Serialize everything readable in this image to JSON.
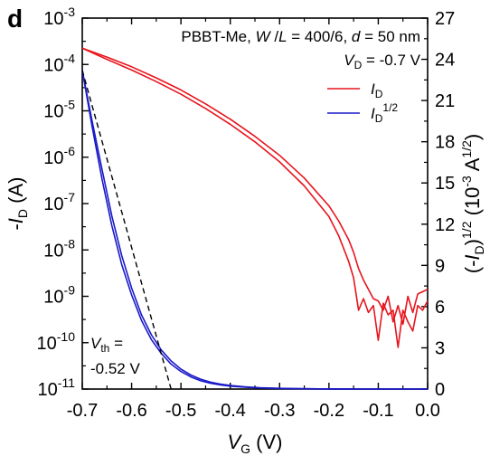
{
  "chart_data": {
    "type": "line",
    "panel_label": "d",
    "device_label": {
      "prefix": "PBBT-Me, ",
      "w": "W",
      "slash": " /",
      "l": "L",
      "eq": " = 400/6, ",
      "d": "d",
      "deq": " = 50 nm"
    },
    "vd_label": {
      "v": "V",
      "sub": "D",
      "rest": " = -0.7 V"
    },
    "xlabel": {
      "v": "V",
      "sub": "G",
      "rest": " (V)"
    },
    "ylabel_left": {
      "pre": "-",
      "i": "I",
      "sub": "D",
      "rest": " (A)"
    },
    "ylabel_right": {
      "pre": "(-",
      "i": "I",
      "sub": "D",
      "mid": ")",
      "sup": "1/2",
      "rest": " (10",
      "sup2": "-3",
      "rest2": " A",
      "sup3": "1/2",
      "end": ")"
    },
    "legend": [
      {
        "i": "I",
        "sub": "D",
        "sup": "",
        "color": "#e8141c"
      },
      {
        "i": "I",
        "sub": "D",
        "sup": "1/2",
        "color": "#1a1ac8"
      }
    ],
    "vth_label": {
      "v": "V",
      "sub": "th",
      "eq": " =",
      "value": "-0.52 V"
    },
    "xlim": [
      -0.7,
      0.0
    ],
    "x_ticks": [
      -0.7,
      -0.6,
      -0.5,
      -0.4,
      -0.3,
      -0.2,
      -0.1,
      0.0
    ],
    "x_tick_labels": [
      "-0.7",
      "-0.6",
      "-0.5",
      "-0.4",
      "-0.3",
      "-0.2",
      "-0.1",
      "0.0"
    ],
    "ylim_left_log10": [
      -11,
      -3
    ],
    "y_left_ticks": [
      {
        "exp": -3,
        "mant": "10",
        "sup": "-3"
      },
      {
        "exp": -4,
        "mant": "10",
        "sup": "-4"
      },
      {
        "exp": -5,
        "mant": "10",
        "sup": "-5"
      },
      {
        "exp": -6,
        "mant": "10",
        "sup": "-6"
      },
      {
        "exp": -7,
        "mant": "10",
        "sup": "-7"
      },
      {
        "exp": -8,
        "mant": "10",
        "sup": "-8"
      },
      {
        "exp": -9,
        "mant": "10",
        "sup": "-9"
      },
      {
        "exp": -10,
        "mant": "10",
        "sup": "-10"
      },
      {
        "exp": -11,
        "mant": "10",
        "sup": "-11"
      }
    ],
    "ylim_right": [
      0,
      27
    ],
    "y_right_ticks": [
      0,
      3,
      6,
      9,
      12,
      15,
      18,
      21,
      24,
      27
    ],
    "series": [
      {
        "name": "ID",
        "axis": "left",
        "color": "#e8141c",
        "x": [
          -0.7,
          -0.65,
          -0.6,
          -0.55,
          -0.5,
          -0.45,
          -0.4,
          -0.35,
          -0.3,
          -0.25,
          -0.2,
          -0.18,
          -0.16,
          -0.15,
          -0.14,
          -0.13,
          -0.12,
          -0.11,
          -0.1,
          -0.09,
          -0.08,
          -0.07,
          -0.06,
          -0.05,
          -0.04,
          -0.03,
          -0.02,
          -0.01,
          0.0
        ],
        "y_log10": [
          -3.65,
          -3.84,
          -4.05,
          -4.29,
          -4.55,
          -4.85,
          -5.18,
          -5.55,
          -5.96,
          -6.45,
          -7.05,
          -7.38,
          -7.78,
          -8.05,
          -8.4,
          -8.65,
          -8.85,
          -9.05,
          -9.1,
          -9.3,
          -9.0,
          -9.55,
          -9.2,
          -9.6,
          -9.0,
          -9.35,
          -8.95,
          -8.9,
          -8.85
        ]
      },
      {
        "name": "ID",
        "axis": "left",
        "color": "#e8141c",
        "x": [
          -0.7,
          -0.65,
          -0.6,
          -0.55,
          -0.5,
          -0.45,
          -0.4,
          -0.35,
          -0.3,
          -0.25,
          -0.2,
          -0.18,
          -0.16,
          -0.15,
          -0.14,
          -0.13,
          -0.12,
          -0.11,
          -0.1,
          -0.09,
          -0.08,
          -0.07,
          -0.06,
          -0.05,
          -0.04,
          -0.03,
          -0.02,
          -0.01,
          0.0
        ],
        "y_log10": [
          -3.65,
          -3.89,
          -4.12,
          -4.37,
          -4.64,
          -4.95,
          -5.29,
          -5.67,
          -6.1,
          -6.62,
          -7.28,
          -7.7,
          -8.25,
          -8.6,
          -9.3,
          -9.05,
          -9.35,
          -9.2,
          -9.95,
          -9.15,
          -9.4,
          -9.3,
          -10.1,
          -9.3,
          -9.55,
          -9.75,
          -9.2,
          -9.3,
          -9.1
        ]
      },
      {
        "name": "ID1/2",
        "axis": "right",
        "color": "#1a1ac8",
        "x": [
          -0.7,
          -0.68,
          -0.66,
          -0.64,
          -0.62,
          -0.6,
          -0.58,
          -0.56,
          -0.54,
          -0.52,
          -0.5,
          -0.48,
          -0.46,
          -0.44,
          -0.42,
          -0.4,
          -0.37,
          -0.34,
          -0.3,
          -0.26,
          -0.22,
          -0.18,
          -0.14,
          -0.1,
          -0.05,
          0.0
        ],
        "y": [
          23.2,
          19.5,
          16.0,
          12.6,
          9.7,
          7.35,
          5.4,
          3.95,
          2.85,
          2.05,
          1.45,
          1.02,
          0.72,
          0.5,
          0.36,
          0.26,
          0.16,
          0.1,
          0.05,
          0.025,
          0.012,
          0.006,
          0.003,
          0.001,
          0.0,
          0.0
        ]
      },
      {
        "name": "ID1/2",
        "axis": "right",
        "color": "#1a1ac8",
        "x": [
          -0.7,
          -0.68,
          -0.66,
          -0.64,
          -0.62,
          -0.6,
          -0.58,
          -0.56,
          -0.54,
          -0.52,
          -0.5,
          -0.48,
          -0.46,
          -0.44,
          -0.42,
          -0.4,
          -0.37,
          -0.34,
          -0.3,
          -0.26,
          -0.22,
          -0.18,
          -0.14,
          -0.1,
          -0.05,
          0.0
        ],
        "y": [
          23.2,
          19.1,
          15.3,
          11.9,
          9.05,
          6.85,
          5.0,
          3.6,
          2.6,
          1.82,
          1.28,
          0.88,
          0.6,
          0.42,
          0.3,
          0.21,
          0.13,
          0.08,
          0.04,
          0.02,
          0.01,
          0.005,
          0.002,
          0.001,
          0.0,
          0.0
        ]
      }
    ],
    "threshold_fit": {
      "axis": "right",
      "x": [
        -0.7,
        -0.52
      ],
      "y": [
        23.2,
        0
      ],
      "style": "dashed",
      "color": "#000000"
    }
  }
}
